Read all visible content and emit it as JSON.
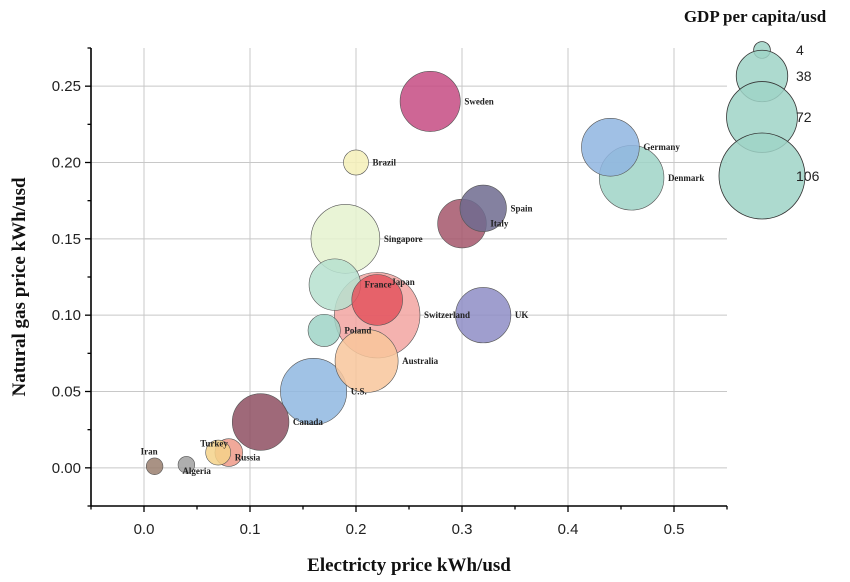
{
  "chart_data": {
    "type": "scatter",
    "subtype": "bubble",
    "title": "",
    "xlabel": "Electricty price kWh/usd",
    "ylabel": "Natural gas price kWh/usd",
    "xlim": [
      -0.05,
      0.55
    ],
    "ylim": [
      -0.025,
      0.275
    ],
    "x_ticks": [
      0.0,
      0.1,
      0.2,
      0.3,
      0.4,
      0.5
    ],
    "x_tick_labels": [
      "0.0",
      "0.1",
      "0.2",
      "0.3",
      "0.4",
      "0.5"
    ],
    "y_ticks": [
      0.0,
      0.05,
      0.1,
      0.15,
      0.2,
      0.25
    ],
    "y_tick_labels": [
      "0.00",
      "0.05",
      "0.10",
      "0.15",
      "0.20",
      "0.25"
    ],
    "grid": true,
    "legend": {
      "title": "GDP per capita/usd",
      "placement": "top-right",
      "sizes": [
        4,
        38,
        72,
        106
      ],
      "labels": [
        "4",
        "38",
        "72",
        "106"
      ],
      "color": "#9fd3c7"
    },
    "points": [
      {
        "label": "Iran",
        "x": 0.01,
        "y": 0.001,
        "size": 4,
        "color": "#9a7f6e"
      },
      {
        "label": "Algeria",
        "x": 0.04,
        "y": 0.002,
        "size": 4,
        "color": "#a0a0a0"
      },
      {
        "label": "Turkey",
        "x": 0.07,
        "y": 0.01,
        "size": 9,
        "color": "#f5d28a"
      },
      {
        "label": "Russia",
        "x": 0.08,
        "y": 0.01,
        "size": 11,
        "color": "#ee9a88"
      },
      {
        "label": "Canada",
        "x": 0.11,
        "y": 0.03,
        "size": 46,
        "color": "#8e4f62"
      },
      {
        "label": "U.S.",
        "x": 0.16,
        "y": 0.05,
        "size": 63,
        "color": "#8fb7e0"
      },
      {
        "label": "Poland",
        "x": 0.17,
        "y": 0.09,
        "size": 15,
        "color": "#9fd3c7"
      },
      {
        "label": "France",
        "x": 0.18,
        "y": 0.12,
        "size": 38,
        "color": "#b6e0cf"
      },
      {
        "label": "Singapore",
        "x": 0.19,
        "y": 0.15,
        "size": 68,
        "color": "#e5f2cf"
      },
      {
        "label": "Brazil",
        "x": 0.2,
        "y": 0.2,
        "size": 9,
        "color": "#f5f0b8"
      },
      {
        "label": "Australia",
        "x": 0.21,
        "y": 0.07,
        "size": 57,
        "color": "#f8c59b"
      },
      {
        "label": "Switzerland",
        "x": 0.22,
        "y": 0.1,
        "size": 105,
        "color": "#f2a4a1"
      },
      {
        "label": "Japan",
        "x": 0.22,
        "y": 0.11,
        "size": 37,
        "color": "#e3535e"
      },
      {
        "label": "Sweden",
        "x": 0.27,
        "y": 0.24,
        "size": 52,
        "color": "#c54b82"
      },
      {
        "label": "Italy",
        "x": 0.3,
        "y": 0.16,
        "size": 34,
        "color": "#a5566b"
      },
      {
        "label": "Spain",
        "x": 0.32,
        "y": 0.17,
        "size": 31,
        "color": "#6f6b8f"
      },
      {
        "label": "UK",
        "x": 0.32,
        "y": 0.1,
        "size": 44,
        "color": "#8e8dc6"
      },
      {
        "label": "Germany",
        "x": 0.44,
        "y": 0.21,
        "size": 48,
        "color": "#8fb5e0"
      },
      {
        "label": "Denmark",
        "x": 0.46,
        "y": 0.19,
        "size": 60,
        "color": "#9fd3c7"
      }
    ]
  }
}
